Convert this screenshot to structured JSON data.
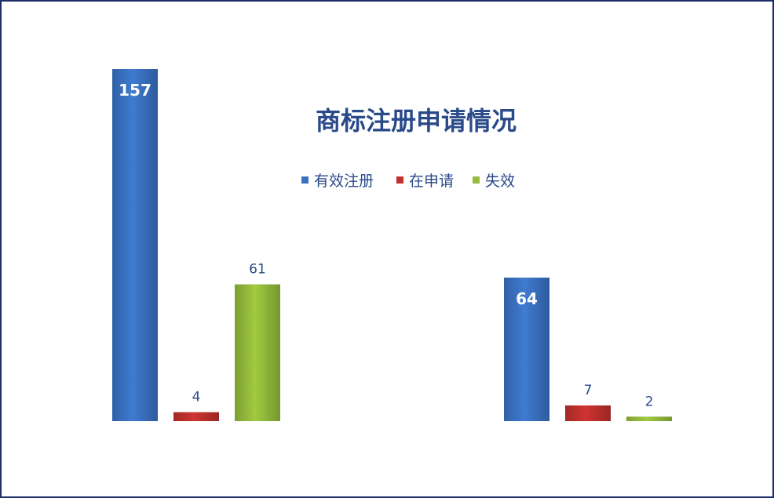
{
  "chart_data": {
    "type": "bar",
    "title": "商标注册申请情况",
    "categories": [
      "",
      ""
    ],
    "series": [
      {
        "name": "有效注册",
        "values": [
          157,
          64
        ],
        "color": "#3a72c2"
      },
      {
        "name": "在申请",
        "values": [
          4,
          7
        ],
        "color": "#c0302d"
      },
      {
        "name": "失效",
        "values": [
          61,
          2
        ],
        "color": "#94bb3c"
      }
    ],
    "ylim": [
      0,
      157
    ],
    "grid": false,
    "legend": "top-center",
    "title_color": "#2a4a8a",
    "label_color": "#2a4a8a"
  }
}
